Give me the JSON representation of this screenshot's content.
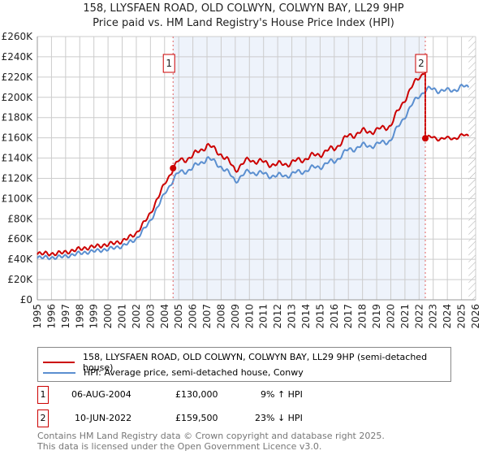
{
  "title": "158, LLYSFAEN ROAD, OLD COLWYN, COLWYN BAY, LL29 9HP",
  "subtitle": "Price paid vs. HM Land Registry's House Price Index (HPI)",
  "chart_data": {
    "type": "line",
    "xlim": [
      1995,
      2026
    ],
    "ylim": [
      0,
      260000
    ],
    "yticks": [
      "£0",
      "£20K",
      "£40K",
      "£60K",
      "£80K",
      "£100K",
      "£120K",
      "£140K",
      "£160K",
      "£180K",
      "£200K",
      "£220K",
      "£240K",
      "£260K"
    ],
    "xticks": [
      "1995",
      "1996",
      "1997",
      "1998",
      "1999",
      "2000",
      "2001",
      "2002",
      "2003",
      "2004",
      "2005",
      "2006",
      "2007",
      "2008",
      "2009",
      "2010",
      "2011",
      "2012",
      "2013",
      "2014",
      "2015",
      "2016",
      "2017",
      "2018",
      "2019",
      "2020",
      "2021",
      "2022",
      "2023",
      "2024",
      "2025",
      "2026"
    ],
    "series": [
      {
        "name": "158, LLYSFAEN ROAD, OLD COLWYN, COLWYN BAY, LL29 9HP (semi-detached house)",
        "color": "#cc0000"
      },
      {
        "name": "HPI: Average price, semi-detached house, Conwy",
        "color": "#5b8fd0",
        "x": [
          1995,
          1996,
          1997,
          1998,
          1999,
          2000,
          2001,
          2002,
          2003,
          2004,
          2004.6,
          2005,
          2006,
          2007,
          2007.5,
          2008,
          2009,
          2010,
          2011,
          2012,
          2013,
          2014,
          2015,
          2016,
          2017,
          2018,
          2019,
          2020,
          2021,
          2022,
          2022.44,
          2023,
          2024,
          2025,
          2025.5
        ],
        "y": [
          42000,
          41500,
          43000,
          46000,
          48000,
          50000,
          53000,
          60000,
          78000,
          105000,
          119000,
          125000,
          130000,
          140000,
          136000,
          132000,
          118000,
          127000,
          124000,
          122000,
          124000,
          128000,
          132000,
          137000,
          148000,
          152000,
          153000,
          158000,
          182000,
          202000,
          207000,
          208000,
          206000,
          210000,
          210000
        ]
      }
    ],
    "sales": [
      {
        "label": "1",
        "x": 2004.6,
        "price": 130000
      },
      {
        "label": "2",
        "x": 2022.44,
        "price": 159500
      }
    ],
    "hatch_from": 2025.5
  },
  "legend": {
    "red": "158, LLYSFAEN ROAD, OLD COLWYN, COLWYN BAY, LL29 9HP (semi-detached house)",
    "blue": "HPI: Average price, semi-detached house, Conwy"
  },
  "transactions": [
    {
      "n": "1",
      "date": "06-AUG-2004",
      "price": "£130,000",
      "hpi": "9% ↑ HPI"
    },
    {
      "n": "2",
      "date": "10-JUN-2022",
      "price": "£159,500",
      "hpi": "23% ↓ HPI"
    }
  ],
  "footer": {
    "line1": "Contains HM Land Registry data © Crown copyright and database right 2025.",
    "line2": "This data is licensed under the Open Government Licence v3.0."
  }
}
